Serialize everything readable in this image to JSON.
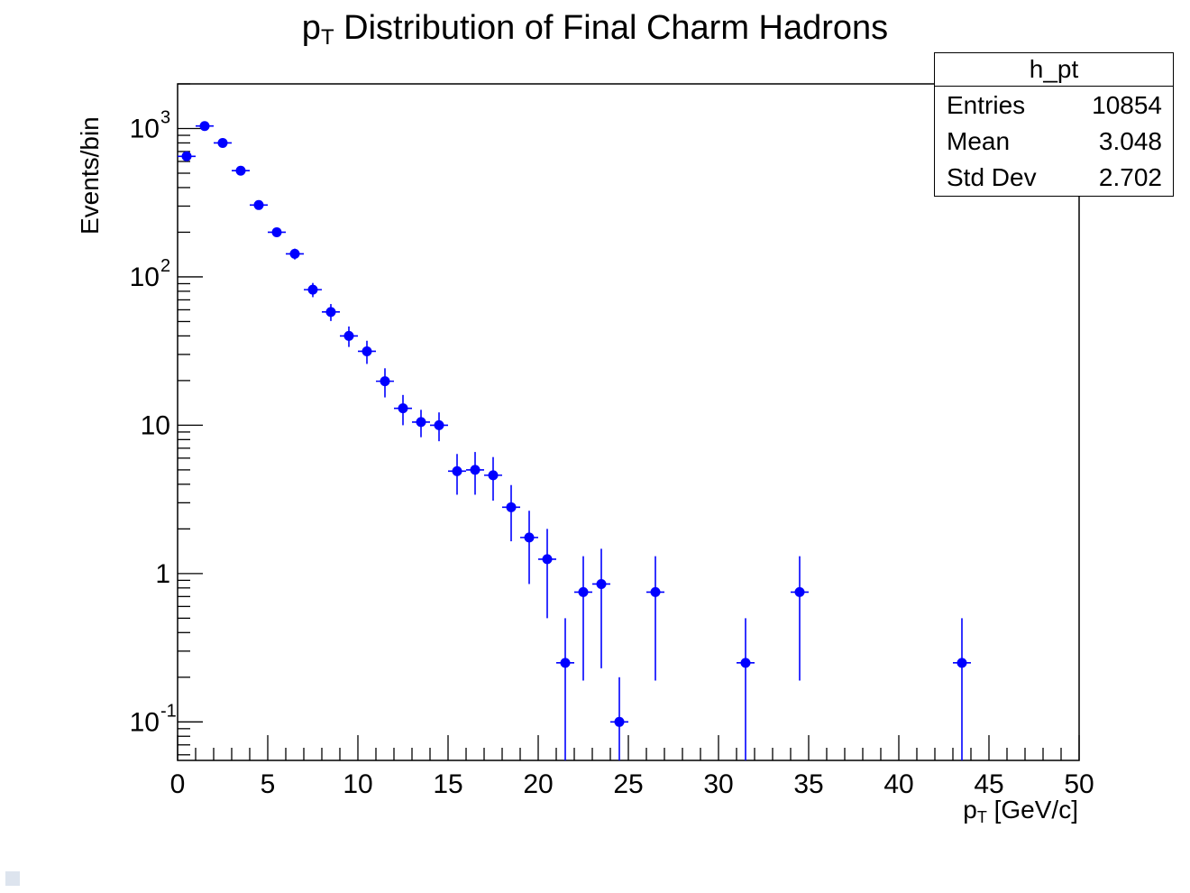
{
  "chart_data": {
    "type": "scatter",
    "title_main": "p",
    "title_sub": "T",
    "title_rest": " Distribution of Final Charm Hadrons",
    "xlabel_main": "p",
    "xlabel_sub": "T",
    "xlabel_rest": " [GeV/c]",
    "ylabel": "Events/bin",
    "xlim": [
      0,
      50
    ],
    "ylim": [
      0.055,
      2000
    ],
    "yscale": "log",
    "grid": false,
    "marker_color": "#0000ff",
    "x_ticks": [
      "0",
      "5",
      "10",
      "15",
      "20",
      "25",
      "30",
      "35",
      "40",
      "45",
      "50"
    ],
    "points": [
      {
        "x": 0.5,
        "y": 650,
        "err": 25
      },
      {
        "x": 1.5,
        "y": 1040,
        "err": 32
      },
      {
        "x": 2.5,
        "y": 800,
        "err": 28
      },
      {
        "x": 3.5,
        "y": 520,
        "err": 23
      },
      {
        "x": 4.5,
        "y": 305,
        "err": 17
      },
      {
        "x": 5.5,
        "y": 200,
        "err": 14
      },
      {
        "x": 6.5,
        "y": 143,
        "err": 12
      },
      {
        "x": 7.5,
        "y": 82,
        "err": 9
      },
      {
        "x": 8.5,
        "y": 58,
        "err": 7.6
      },
      {
        "x": 9.5,
        "y": 40,
        "err": 6.3
      },
      {
        "x": 10.5,
        "y": 31.5,
        "err": 5.6
      },
      {
        "x": 11.5,
        "y": 19.8,
        "err": 4.4
      },
      {
        "x": 12.5,
        "y": 13,
        "err": 3
      },
      {
        "x": 13.5,
        "y": 10.5,
        "err": 2.2
      },
      {
        "x": 14.5,
        "y": 10,
        "err": 2.2
      },
      {
        "x": 15.5,
        "y": 4.9,
        "err": 1.5
      },
      {
        "x": 16.5,
        "y": 5.0,
        "err": 1.6
      },
      {
        "x": 17.5,
        "y": 4.6,
        "err": 1.5
      },
      {
        "x": 18.5,
        "y": 2.8,
        "err": 1.15
      },
      {
        "x": 19.5,
        "y": 1.75,
        "err": 0.9
      },
      {
        "x": 20.5,
        "y": 1.25,
        "err": 0.75
      },
      {
        "x": 21.5,
        "y": 0.25,
        "err": 0.25
      },
      {
        "x": 22.5,
        "y": 0.75,
        "err": 0.56
      },
      {
        "x": 23.5,
        "y": 0.85,
        "err": 0.62
      },
      {
        "x": 24.5,
        "y": 0.1,
        "err": 0.1
      },
      {
        "x": 26.5,
        "y": 0.75,
        "err": 0.56
      },
      {
        "x": 31.5,
        "y": 0.25,
        "err": 0.25
      },
      {
        "x": 34.5,
        "y": 0.75,
        "err": 0.56
      },
      {
        "x": 43.5,
        "y": 0.25,
        "err": 0.25
      }
    ]
  },
  "stats": {
    "name": "h_pt",
    "rows": [
      {
        "label": "Entries",
        "value": "10854"
      },
      {
        "label": "Mean",
        "value": "3.048"
      },
      {
        "label": "Std Dev",
        "value": "2.702"
      }
    ]
  }
}
